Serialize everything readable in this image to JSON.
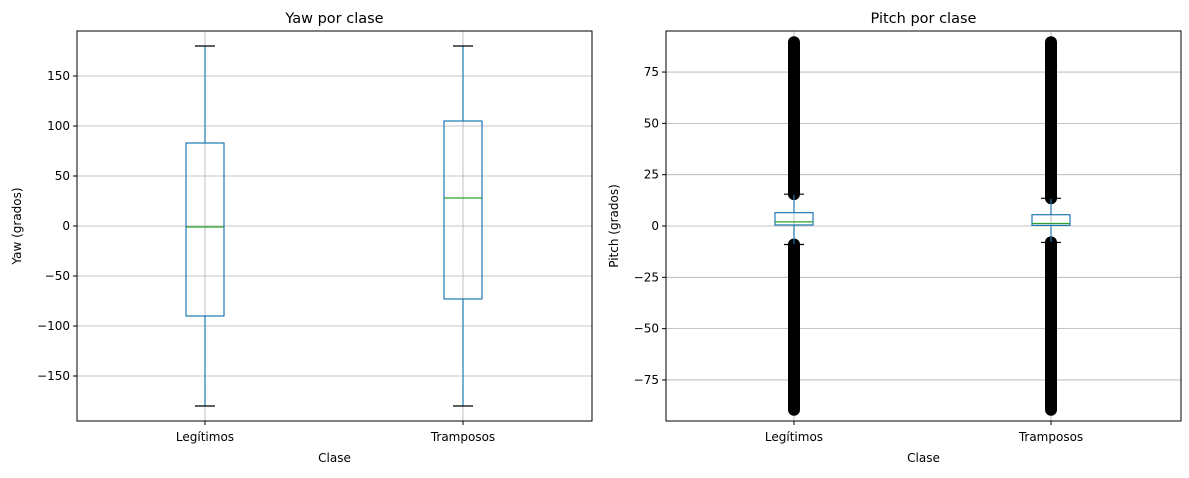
{
  "chart_data": [
    {
      "type": "boxplot",
      "title": "Yaw por clase",
      "xlabel": "Clase",
      "ylabel": "Yaw (grados)",
      "ylim": [
        -195,
        195
      ],
      "yticks": [
        -150,
        -100,
        -50,
        0,
        50,
        100,
        150
      ],
      "ytick_labels": [
        "−150",
        "−100",
        "−50",
        "0",
        "50",
        "100",
        "150"
      ],
      "categories": [
        "Legítimos",
        "Tramposos"
      ],
      "grid": true,
      "boxes": [
        {
          "whisker_low": -180,
          "q1": -90,
          "median": -1,
          "q3": 83,
          "whisker_high": 180,
          "outliers_low": [],
          "outliers_high": []
        },
        {
          "whisker_low": -180,
          "q1": -73,
          "median": 28,
          "q3": 105,
          "whisker_high": 180,
          "outliers_low": [],
          "outliers_high": []
        }
      ]
    },
    {
      "type": "boxplot",
      "title": "Pitch por clase",
      "xlabel": "Clase",
      "ylabel": "Pitch (grados)",
      "ylim": [
        -95,
        95
      ],
      "yticks": [
        -75,
        -50,
        -25,
        0,
        25,
        50,
        75
      ],
      "ytick_labels": [
        "−75",
        "−50",
        "−25",
        "0",
        "25",
        "50",
        "75"
      ],
      "categories": [
        "Legítimos",
        "Tramposos"
      ],
      "grid": true,
      "boxes": [
        {
          "whisker_low": -9,
          "q1": 0.5,
          "median": 2,
          "q3": 6.5,
          "whisker_high": 15.5,
          "outliers_low": [
            -89.5,
            -9
          ],
          "outliers_high": [
            15.5,
            89.5
          ]
        },
        {
          "whisker_low": -8,
          "q1": 0.3,
          "median": 1.2,
          "q3": 5.5,
          "whisker_high": 13.5,
          "outliers_low": [
            -89.5,
            -8
          ],
          "outliers_high": [
            13.5,
            89.5
          ]
        }
      ]
    }
  ],
  "colors": {
    "box": "#1f77b4",
    "median": "#2ca02c",
    "grid": "#b0b0b0",
    "outliers": "#000000"
  }
}
